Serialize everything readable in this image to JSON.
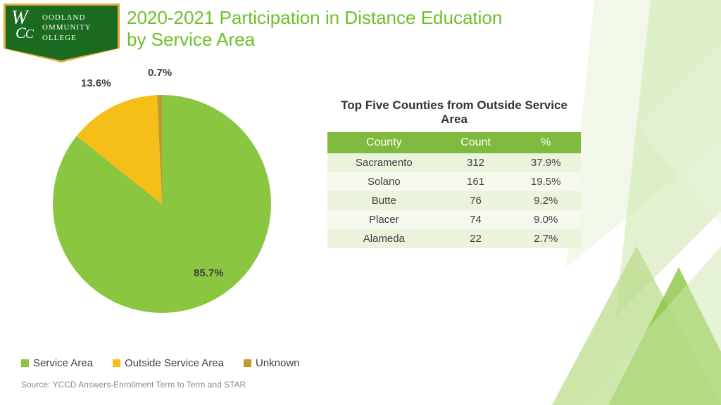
{
  "title": "2020-2021 Participation in Distance Education by Service Area",
  "title_color": "#6fbf2a",
  "logo": {
    "line1": "OODLAND",
    "line2": "OMMUNITY",
    "line3": "OLLEGE",
    "bg": "#1a6b1f",
    "border": "#e8a93d"
  },
  "pie": {
    "type": "pie",
    "slices": [
      {
        "label": "Service Area",
        "value": 85.7,
        "display": "85.7%",
        "color": "#8bc641"
      },
      {
        "label": "Outside Service Area",
        "value": 13.6,
        "display": "13.6%",
        "color": "#f5be18"
      },
      {
        "label": "Unknown",
        "value": 0.7,
        "display": "0.7%",
        "color": "#c09a2c"
      }
    ],
    "label_fontsize": 15,
    "label_color": "#404040"
  },
  "legend": [
    {
      "label": "Service Area",
      "color": "#8bc641"
    },
    {
      "label": "Outside Service Area",
      "color": "#f5be18"
    },
    {
      "label": "Unknown",
      "color": "#c09a2c"
    }
  ],
  "table": {
    "title": "Top Five Counties from Outside Service Area",
    "header_bg": "#7fb93e",
    "row_alt_bg": [
      "#ebf3dd",
      "#f5f9ed"
    ],
    "columns": [
      "County",
      "Count",
      "%"
    ],
    "rows": [
      [
        "Sacramento",
        "312",
        "37.9%"
      ],
      [
        "Solano",
        "161",
        "19.5%"
      ],
      [
        "Butte",
        "76",
        "9.2%"
      ],
      [
        "Placer",
        "74",
        "9.0%"
      ],
      [
        "Alameda",
        "22",
        "2.7%"
      ]
    ]
  },
  "source": "Source: YCCD Answers-Enrollment Term to Term and STAR",
  "bg_shapes": {
    "colors": [
      "#e9f4da",
      "#d0e8b0",
      "#b7dc86",
      "#8bc641",
      "#6fa834"
    ]
  }
}
